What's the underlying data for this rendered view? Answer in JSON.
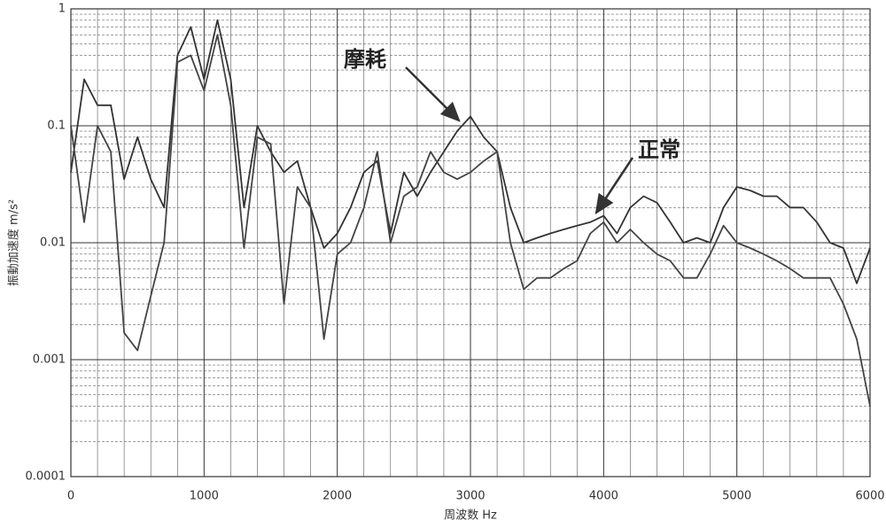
{
  "chart_data": {
    "type": "line",
    "xlabel": "周波数 Hz",
    "ylabel": "振動加速度 m/s²",
    "annotations": [
      "摩耗",
      "正常"
    ],
    "x": [
      0,
      100,
      200,
      300,
      400,
      500,
      600,
      700,
      800,
      900,
      1000,
      1100,
      1200,
      1300,
      1400,
      1500,
      1600,
      1700,
      1800,
      1900,
      2000,
      2100,
      2200,
      2300,
      2400,
      2500,
      2600,
      2700,
      2800,
      2900,
      3000,
      3100,
      3200,
      3300,
      3400,
      3500,
      3600,
      3700,
      3800,
      3900,
      4000,
      4100,
      4200,
      4300,
      4400,
      4500,
      4600,
      4700,
      4800,
      4900,
      5000,
      5100,
      5200,
      5300,
      5400,
      5500,
      5600,
      5700,
      5800,
      5900,
      6000
    ],
    "series": [
      {
        "name": "摩耗",
        "color": "#333333",
        "values": [
          0.04,
          0.25,
          0.15,
          0.15,
          0.035,
          0.08,
          0.035,
          0.02,
          0.4,
          0.7,
          0.25,
          0.8,
          0.25,
          0.02,
          0.1,
          0.06,
          0.04,
          0.05,
          0.02,
          0.009,
          0.012,
          0.02,
          0.04,
          0.05,
          0.012,
          0.04,
          0.025,
          0.04,
          0.06,
          0.09,
          0.12,
          0.08,
          0.06,
          0.02,
          0.01,
          0.011,
          0.012,
          0.013,
          0.014,
          0.015,
          0.017,
          0.012,
          0.02,
          0.025,
          0.022,
          0.015,
          0.01,
          0.011,
          0.01,
          0.02,
          0.03,
          0.028,
          0.025,
          0.025,
          0.02,
          0.02,
          0.015,
          0.01,
          0.009,
          0.0045,
          0.009
        ]
      },
      {
        "name": "正常",
        "color": "#444444",
        "values": [
          0.1,
          0.015,
          0.1,
          0.06,
          0.0017,
          0.0012,
          0.0035,
          0.01,
          0.35,
          0.4,
          0.2,
          0.6,
          0.15,
          0.009,
          0.08,
          0.07,
          0.003,
          0.03,
          0.02,
          0.0015,
          0.008,
          0.01,
          0.02,
          0.06,
          0.01,
          0.025,
          0.03,
          0.06,
          0.04,
          0.035,
          0.04,
          0.05,
          0.06,
          0.01,
          0.004,
          0.005,
          0.005,
          0.006,
          0.007,
          0.012,
          0.015,
          0.01,
          0.013,
          0.01,
          0.008,
          0.007,
          0.005,
          0.005,
          0.008,
          0.014,
          0.01,
          0.009,
          0.008,
          0.007,
          0.006,
          0.005,
          0.005,
          0.005,
          0.003,
          0.0015,
          0.0004
        ]
      }
    ],
    "xlim": [
      0,
      6000
    ],
    "xticks": [
      0,
      1000,
      2000,
      3000,
      4000,
      5000,
      6000
    ],
    "ylim": [
      0.0001,
      1
    ],
    "yticks": [
      0.0001,
      0.001,
      0.01,
      0.1,
      1
    ],
    "log_y": true,
    "grid": true
  }
}
